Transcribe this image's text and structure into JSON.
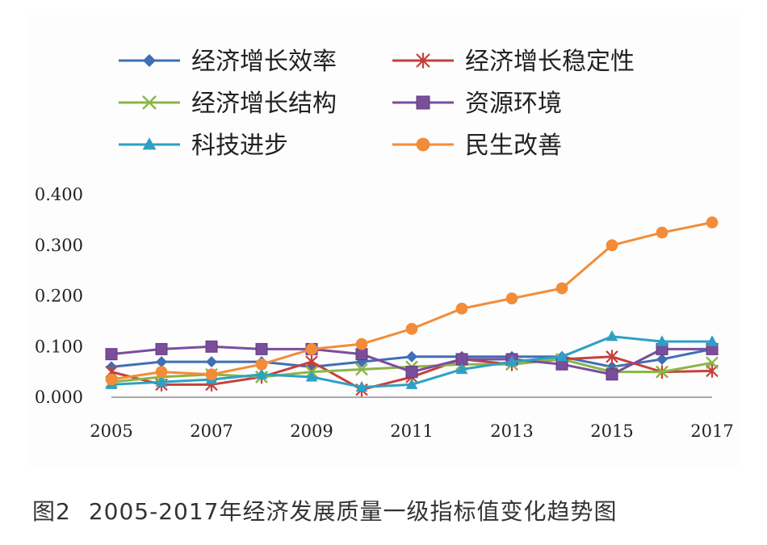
{
  "caption": {
    "figure_number": "图2",
    "text": "2005-2017年经济发展质量一级指标值变化趋势图"
  },
  "chart_data": {
    "type": "line",
    "title": "",
    "xlabel": "",
    "ylabel": "",
    "x": [
      2005,
      2006,
      2007,
      2008,
      2009,
      2010,
      2011,
      2012,
      2013,
      2014,
      2015,
      2016,
      2017
    ],
    "x_tick_labels": [
      "2005",
      "2007",
      "2009",
      "2011",
      "2013",
      "2015",
      "2017"
    ],
    "x_tick_values": [
      2005,
      2007,
      2009,
      2011,
      2013,
      2015,
      2017
    ],
    "y_tick_labels": [
      "0.000",
      "0.100",
      "0.200",
      "0.300",
      "0.400"
    ],
    "y_tick_values": [
      0,
      0.1,
      0.2,
      0.3,
      0.4
    ],
    "ylim": [
      0,
      0.4
    ],
    "grid": false,
    "legend_position": "top",
    "series": [
      {
        "name": "经济增长效率",
        "color": "#3f6fb5",
        "marker": "diamond",
        "values": [
          0.06,
          0.07,
          0.07,
          0.07,
          0.06,
          0.07,
          0.08,
          0.08,
          0.08,
          0.08,
          0.06,
          0.075,
          0.095
        ]
      },
      {
        "name": "经济增长稳定性",
        "color": "#c6403b",
        "marker": "star",
        "values": [
          0.05,
          0.025,
          0.025,
          0.04,
          0.07,
          0.015,
          0.04,
          0.075,
          0.065,
          0.075,
          0.08,
          0.05,
          0.052
        ]
      },
      {
        "name": "经济增长结构",
        "color": "#8bb545",
        "marker": "x",
        "values": [
          0.03,
          0.04,
          0.045,
          0.04,
          0.05,
          0.055,
          0.06,
          0.065,
          0.065,
          0.075,
          0.05,
          0.05,
          0.068
        ]
      },
      {
        "name": "资源环境",
        "color": "#7b4e9c",
        "marker": "square",
        "values": [
          0.085,
          0.095,
          0.1,
          0.095,
          0.095,
          0.085,
          0.05,
          0.075,
          0.075,
          0.065,
          0.045,
          0.095,
          0.095
        ]
      },
      {
        "name": "科技进步",
        "color": "#2ea0c4",
        "marker": "triangle",
        "values": [
          0.025,
          0.03,
          0.035,
          0.045,
          0.04,
          0.02,
          0.025,
          0.055,
          0.07,
          0.08,
          0.12,
          0.11,
          0.11
        ]
      },
      {
        "name": "民生改善",
        "color": "#f28c38",
        "marker": "circle",
        "values": [
          0.035,
          0.05,
          0.045,
          0.065,
          0.095,
          0.105,
          0.135,
          0.175,
          0.195,
          0.215,
          0.3,
          0.325,
          0.345
        ]
      }
    ]
  }
}
